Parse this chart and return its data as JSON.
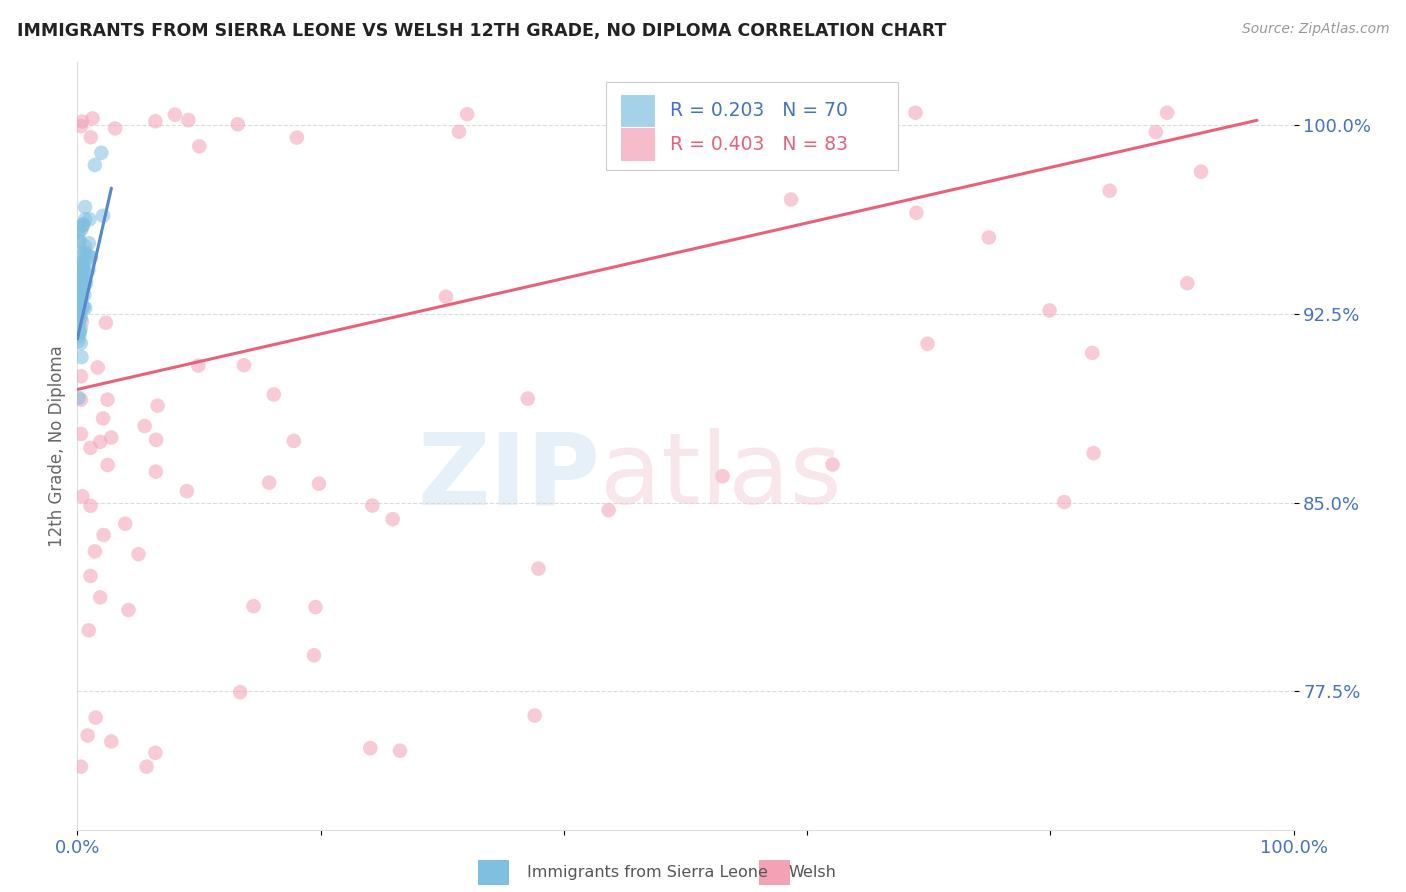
{
  "title": "IMMIGRANTS FROM SIERRA LEONE VS WELSH 12TH GRADE, NO DIPLOMA CORRELATION CHART",
  "source": "Source: ZipAtlas.com",
  "ylabel": "12th Grade, No Diploma",
  "xlim": [
    0.0,
    1.0
  ],
  "ylim": [
    0.72,
    1.025
  ],
  "yticks": [
    0.775,
    0.85,
    0.925,
    1.0
  ],
  "ytick_labels": [
    "77.5%",
    "85.0%",
    "92.5%",
    "100.0%"
  ],
  "xtick_labels": [
    "0.0%",
    "",
    "",
    "",
    "",
    "100.0%"
  ],
  "blue_label": "Immigrants from Sierra Leone",
  "pink_label": "Welsh",
  "blue_R": 0.203,
  "blue_N": 70,
  "pink_R": 0.403,
  "pink_N": 83,
  "blue_color": "#7fbfdf",
  "pink_color": "#f4a0b5",
  "blue_line_color": "#5588cc",
  "pink_line_color": "#e8607a",
  "background_color": "#ffffff",
  "grid_color": "#cccccc",
  "tick_color": "#4472C4",
  "title_color": "#222222",
  "source_color": "#999999",
  "ylabel_color": "#666666"
}
